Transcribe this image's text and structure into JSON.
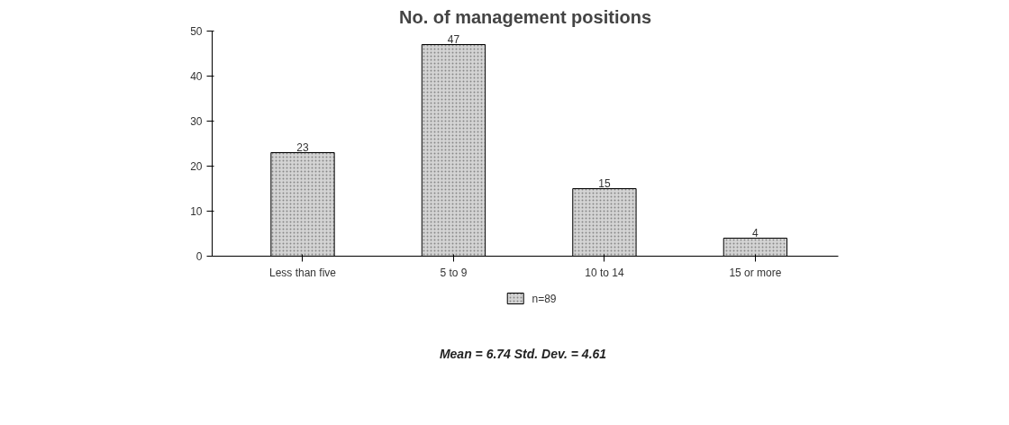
{
  "chart_data": {
    "type": "bar",
    "title": "No. of management positions",
    "categories": [
      "Less than five",
      "5 to 9",
      "10 to 14",
      "15 or more"
    ],
    "series": [
      {
        "name": "n=89",
        "color": "#d4d4d4",
        "values": [
          23,
          47,
          15,
          4
        ]
      }
    ],
    "ylim": [
      0,
      50
    ],
    "yticks": [
      0,
      10,
      20,
      30,
      40,
      50
    ],
    "grid": false,
    "legend": "bottom",
    "data_labels": true,
    "annotations": [
      "Mean = 6.74 Std. Dev. = 4.61"
    ]
  }
}
